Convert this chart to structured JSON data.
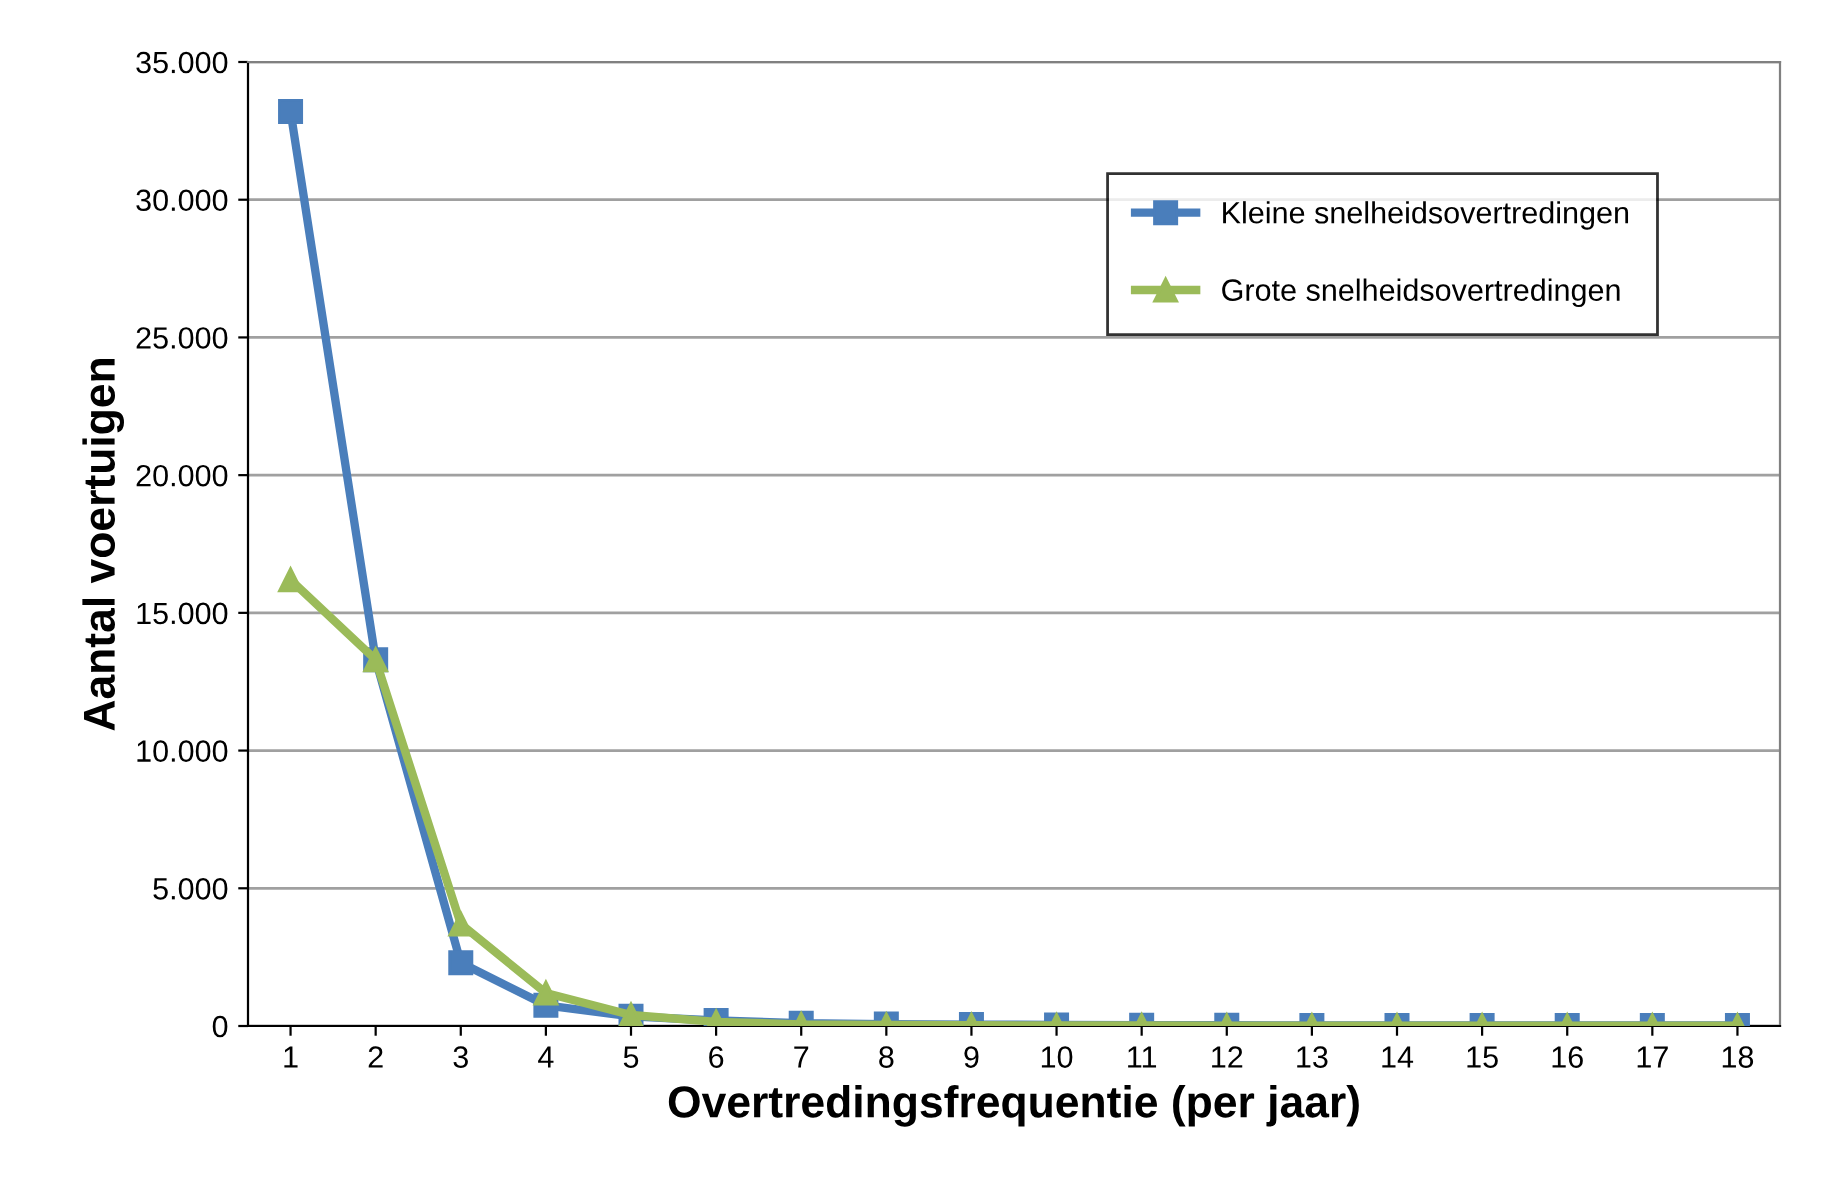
{
  "chart_data": {
    "type": "line",
    "xlabel": "Overtredingsfrequentie (per jaar)",
    "ylabel": "Aantal voertuigen",
    "categories": [
      "1",
      "2",
      "3",
      "4",
      "5",
      "6",
      "7",
      "8",
      "9",
      "10",
      "11",
      "12",
      "13",
      "14",
      "15",
      "16",
      "17",
      "18"
    ],
    "series": [
      {
        "name": "Kleine snelheidsovertredingen",
        "color": "#4a7ebb",
        "marker": "square",
        "values": [
          33200,
          13300,
          2300,
          750,
          350,
          200,
          100,
          70,
          50,
          40,
          30,
          30,
          20,
          20,
          20,
          20,
          20,
          20
        ]
      },
      {
        "name": "Grote snelheidsovertredingen",
        "color": "#9bbb59",
        "marker": "triangle",
        "values": [
          16200,
          13300,
          3700,
          1200,
          400,
          150,
          60,
          40,
          30,
          20,
          20,
          10,
          10,
          10,
          10,
          10,
          10,
          10
        ]
      }
    ],
    "ylim": [
      0,
      35000
    ],
    "yticks": [
      {
        "value": 0,
        "label": "0"
      },
      {
        "value": 5000,
        "label": "5.000"
      },
      {
        "value": 10000,
        "label": "10.000"
      },
      {
        "value": 15000,
        "label": "15.000"
      },
      {
        "value": 20000,
        "label": "20.000"
      },
      {
        "value": 25000,
        "label": "25.000"
      },
      {
        "value": 30000,
        "label": "30.000"
      },
      {
        "value": 35000,
        "label": "35.000"
      }
    ],
    "grid": "y",
    "legend": "top right",
    "line_style": "solid"
  }
}
